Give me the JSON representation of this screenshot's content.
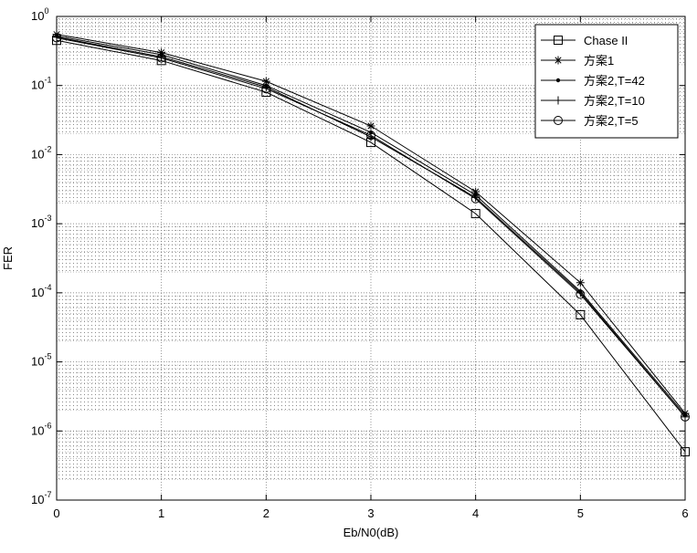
{
  "chart_data": {
    "type": "line",
    "title": "",
    "xlabel": "Eb/N0(dB)",
    "ylabel": "FER",
    "xlim": [
      0,
      6
    ],
    "ylim": [
      1e-07,
      1
    ],
    "yscale": "log",
    "grid": true,
    "legend_position": "top-right",
    "xticks": [
      0,
      1,
      2,
      3,
      4,
      5,
      6
    ],
    "xtick_labels": [
      "0",
      "1",
      "2",
      "3",
      "4",
      "5",
      "6"
    ],
    "yticks": [
      1e-07,
      1e-06,
      1e-05,
      0.0001,
      0.001,
      0.01,
      0.1,
      1
    ],
    "ytick_labels": [
      {
        "base": "10",
        "exp": "-7"
      },
      {
        "base": "10",
        "exp": "-6"
      },
      {
        "base": "10",
        "exp": "-5"
      },
      {
        "base": "10",
        "exp": "-4"
      },
      {
        "base": "10",
        "exp": "-3"
      },
      {
        "base": "10",
        "exp": "-2"
      },
      {
        "base": "10",
        "exp": "-1"
      },
      {
        "base": "10",
        "exp": "0"
      }
    ],
    "x": [
      0,
      1,
      2,
      3,
      4,
      5,
      6
    ],
    "series": [
      {
        "name": "Chase II",
        "marker": "square",
        "values": [
          0.45,
          0.23,
          0.08,
          0.015,
          0.0014,
          4.8e-05,
          5e-07
        ]
      },
      {
        "name": "方案1",
        "marker": "star",
        "values": [
          0.55,
          0.3,
          0.115,
          0.026,
          0.0029,
          0.00014,
          1.8e-06
        ]
      },
      {
        "name": "方案2,T=42",
        "marker": "dot",
        "values": [
          0.52,
          0.28,
          0.1,
          0.021,
          0.0026,
          0.000105,
          1.7e-06
        ]
      },
      {
        "name": "方案2,T=10",
        "marker": "plus",
        "values": [
          0.5,
          0.26,
          0.095,
          0.018,
          0.0024,
          0.0001,
          1.6e-06
        ]
      },
      {
        "name": "方案2,T=5",
        "marker": "circle",
        "values": [
          0.49,
          0.25,
          0.09,
          0.019,
          0.0023,
          9.5e-05,
          1.6e-06
        ]
      }
    ]
  }
}
